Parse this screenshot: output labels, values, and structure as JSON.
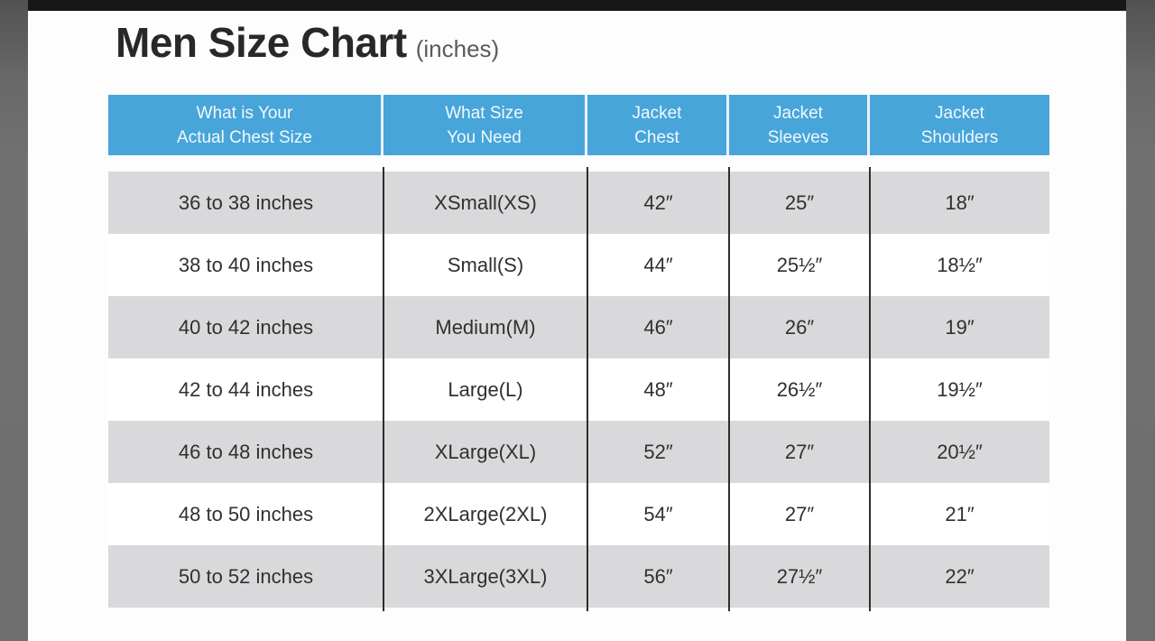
{
  "page": {
    "title": "Men Size Chart",
    "title_suffix": "(inches)"
  },
  "colors": {
    "header_bg": "#47a5da",
    "header_text": "#f2f8fc",
    "row_alt_bg": "#d9d9db",
    "row_bg": "#ffffff",
    "column_divider": "#2e2e2e",
    "letterbox_side": "#6e6e6e",
    "letterbox_top": "#181818"
  },
  "table": {
    "headers": [
      {
        "line1": "What is Your",
        "line2": "Actual Chest Size"
      },
      {
        "line1": "What Size",
        "line2": "You Need"
      },
      {
        "line1": "Jacket",
        "line2": "Chest"
      },
      {
        "line1": "Jacket",
        "line2": "Sleeves"
      },
      {
        "line1": "Jacket",
        "line2": "Shoulders"
      }
    ],
    "rows": [
      {
        "cells": [
          "36 to 38 inches",
          "XSmall(XS)",
          "42″",
          "25″",
          "18″"
        ]
      },
      {
        "cells": [
          "38 to 40 inches",
          "Small(S)",
          "44″",
          "25½″",
          "18½″"
        ]
      },
      {
        "cells": [
          "40 to 42 inches",
          "Medium(M)",
          "46″",
          "26″",
          "19″"
        ]
      },
      {
        "cells": [
          "42 to 44 inches",
          "Large(L)",
          "48″",
          "26½″",
          "19½″"
        ]
      },
      {
        "cells": [
          "46 to 48 inches",
          "XLarge(XL)",
          "52″",
          "27″",
          "20½″"
        ]
      },
      {
        "cells": [
          "48 to 50 inches",
          "2XLarge(2XL)",
          "54″",
          "27″",
          "21″"
        ]
      },
      {
        "cells": [
          "50 to 52 inches",
          "3XLarge(3XL)",
          "56″",
          "27½″",
          "22″"
        ]
      }
    ]
  }
}
